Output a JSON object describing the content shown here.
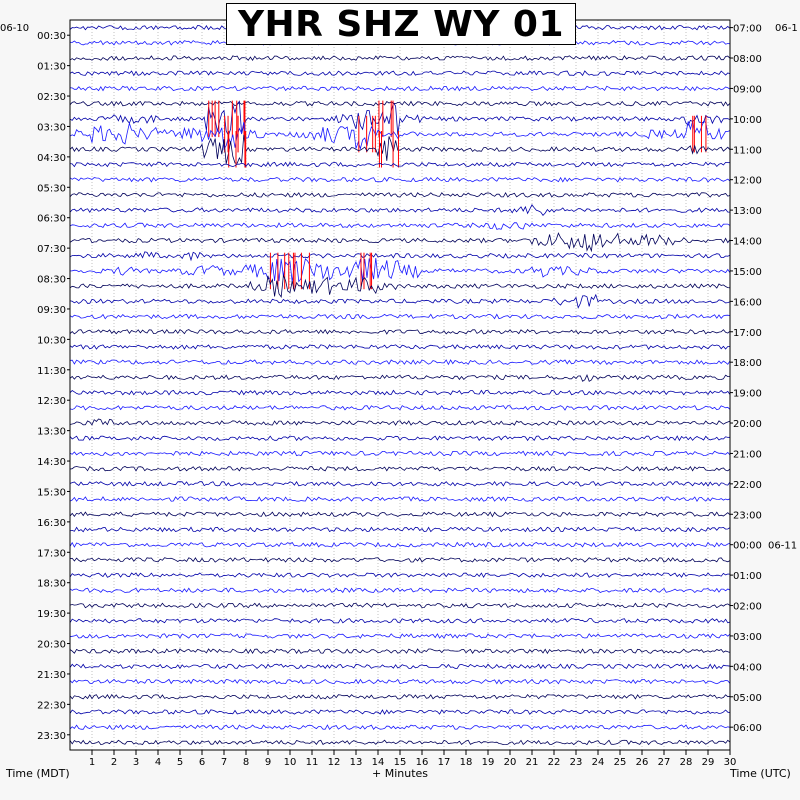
{
  "chart_data": {
    "type": "helicorder",
    "title": "YHR SHZ WY 01",
    "xlabel": "+ Minutes",
    "left_axis_label": "Time (MDT)",
    "right_axis_label": "Time (UTC)",
    "left_date_label": "06-10",
    "right_date_label": "06-1",
    "right_date_change_label": "06-11",
    "xlim": [
      0,
      30
    ],
    "x_ticks": [
      "1",
      "2",
      "3",
      "4",
      "5",
      "6",
      "7",
      "8",
      "9",
      "10",
      "11",
      "12",
      "13",
      "14",
      "15",
      "16",
      "17",
      "18",
      "19",
      "20",
      "21",
      "22",
      "23",
      "24",
      "25",
      "26",
      "27",
      "28",
      "29",
      "30"
    ],
    "left_time_labels": [
      "00:30",
      "01:30",
      "02:30",
      "03:30",
      "04:30",
      "05:30",
      "06:30",
      "07:30",
      "08:30",
      "09:30",
      "10:30",
      "11:30",
      "12:30",
      "13:30",
      "14:30",
      "15:30",
      "16:30",
      "17:30",
      "18:30",
      "19:30",
      "20:30",
      "21:30",
      "22:30",
      "23:30"
    ],
    "right_time_labels": [
      "07:00",
      "08:00",
      "09:00",
      "10:00",
      "11:00",
      "12:00",
      "13:00",
      "14:00",
      "15:00",
      "16:00",
      "17:00",
      "18:00",
      "19:00",
      "20:00",
      "21:00",
      "22:00",
      "23:00",
      "00:00",
      "01:00",
      "02:00",
      "03:00",
      "04:00",
      "05:00",
      "06:00"
    ],
    "date_change_row": 17,
    "traces_per_hour": 2,
    "trace_colors": [
      "#0000a8",
      "#1a1aff",
      "#00005a",
      "#ff0000"
    ],
    "row_activity": [
      [
        1,
        1,
        1,
        1,
        1,
        1,
        1,
        1,
        1,
        1,
        1,
        1,
        1,
        1,
        1,
        1,
        1,
        1,
        1,
        1,
        1,
        1,
        1,
        1,
        1,
        1,
        1,
        1,
        1,
        1
      ],
      [
        1,
        1,
        1,
        1,
        1,
        1,
        1,
        1,
        1,
        1,
        1,
        1,
        1,
        1,
        1,
        1,
        1,
        1,
        1,
        1,
        1,
        1,
        1,
        1,
        1,
        1,
        1,
        1,
        1,
        1
      ],
      [
        1,
        1,
        1,
        1,
        1,
        1,
        1,
        1,
        1,
        1,
        1,
        1,
        1,
        1,
        1,
        1,
        1,
        1,
        1,
        1,
        1,
        1,
        1,
        1,
        1,
        1,
        1,
        1,
        1,
        1
      ],
      [
        1,
        1,
        1,
        1,
        1,
        1,
        1,
        1,
        1,
        1,
        1,
        1,
        1,
        1,
        1,
        1,
        1,
        1,
        1,
        1,
        1,
        1,
        1,
        1,
        1,
        1,
        1,
        1,
        1,
        1
      ],
      [
        1,
        1,
        1,
        1,
        1,
        1,
        1,
        1,
        1,
        1,
        1,
        1,
        1,
        1,
        1,
        1,
        1,
        1,
        1,
        1,
        1,
        1,
        1,
        1,
        1,
        1,
        1,
        1,
        1,
        1
      ],
      [
        1,
        1,
        1,
        1,
        1,
        1,
        1,
        1,
        1,
        1,
        1,
        1,
        1,
        1,
        1,
        1,
        1,
        1,
        1,
        1,
        1,
        1,
        1,
        1,
        1,
        1,
        1,
        1,
        1,
        1
      ],
      [
        1,
        1,
        2,
        2,
        1,
        1,
        6,
        8,
        1,
        1,
        1,
        1,
        2,
        5,
        8,
        2,
        1,
        1,
        1,
        1,
        1,
        1,
        1,
        1,
        1,
        1,
        1,
        1,
        3,
        2
      ],
      [
        2,
        4,
        5,
        3,
        2,
        3,
        4,
        8,
        2,
        1,
        2,
        4,
        4,
        7,
        2,
        1,
        1,
        1,
        1,
        1,
        1,
        1,
        1,
        1,
        1,
        1,
        2,
        2,
        6,
        3
      ],
      [
        1,
        1,
        1,
        1,
        1,
        1,
        5,
        7,
        1,
        1,
        1,
        1,
        1,
        1,
        6,
        1,
        1,
        1,
        1,
        1,
        1,
        1,
        1,
        1,
        1,
        1,
        1,
        1,
        2,
        1
      ],
      [
        1,
        1,
        1,
        1,
        1,
        1,
        1,
        1,
        1,
        1,
        1,
        1,
        1,
        1,
        1,
        1,
        1,
        1,
        1,
        1,
        1,
        1,
        1,
        1,
        1,
        1,
        1,
        1,
        1,
        1
      ],
      [
        1,
        1,
        1,
        1,
        1,
        1,
        1,
        1,
        1,
        1,
        1,
        1,
        1,
        1,
        1,
        1,
        1,
        1,
        1,
        1,
        1,
        1,
        1,
        1,
        1,
        1,
        1,
        1,
        1,
        1
      ],
      [
        1,
        1,
        1,
        1,
        1,
        1,
        1,
        1,
        1,
        1,
        1,
        1,
        1,
        1,
        1,
        1,
        1,
        1,
        1,
        1,
        1,
        1,
        1,
        1,
        1,
        1,
        1,
        1,
        1,
        1
      ],
      [
        1,
        1,
        1,
        1,
        1,
        1,
        1,
        1,
        1,
        1,
        1,
        1,
        1,
        1,
        1,
        1,
        1,
        1,
        1,
        1,
        2,
        3,
        1,
        1,
        1,
        1,
        1,
        1,
        1,
        1
      ],
      [
        1,
        1,
        1,
        1,
        1,
        1,
        1,
        1,
        1,
        1,
        1,
        1,
        1,
        1,
        1,
        1,
        1,
        1,
        1,
        2,
        2,
        1,
        1,
        1,
        1,
        1,
        1,
        1,
        1,
        1
      ],
      [
        1,
        1,
        1,
        1,
        1,
        1,
        1,
        1,
        1,
        1,
        1,
        1,
        1,
        1,
        1,
        1,
        1,
        1,
        1,
        1,
        1,
        3,
        4,
        5,
        4,
        2,
        3,
        2,
        1,
        1
      ],
      [
        1,
        1,
        1,
        2,
        1,
        2,
        1,
        1,
        1,
        1,
        1,
        1,
        1,
        1,
        1,
        1,
        1,
        1,
        1,
        1,
        1,
        1,
        1,
        1,
        1,
        1,
        1,
        1,
        1,
        1
      ],
      [
        1,
        1,
        2,
        1,
        1,
        2,
        3,
        2,
        3,
        6,
        6,
        5,
        4,
        6,
        5,
        3,
        1,
        1,
        1,
        1,
        1,
        3,
        2,
        2,
        1,
        1,
        1,
        1,
        1,
        1
      ],
      [
        1,
        1,
        1,
        1,
        1,
        1,
        1,
        1,
        2,
        5,
        3,
        4,
        3,
        4,
        2,
        1,
        1,
        1,
        1,
        1,
        1,
        1,
        1,
        1,
        1,
        1,
        1,
        1,
        1,
        1
      ],
      [
        1,
        1,
        1,
        1,
        1,
        1,
        1,
        1,
        1,
        1,
        1,
        1,
        1,
        1,
        1,
        1,
        1,
        1,
        1,
        1,
        1,
        1,
        2,
        3,
        1,
        1,
        1,
        1,
        1,
        1
      ],
      [
        1,
        1,
        1,
        1,
        1,
        1,
        1,
        1,
        1,
        1,
        1,
        1,
        1,
        1,
        1,
        1,
        1,
        1,
        1,
        1,
        1,
        1,
        1,
        1,
        1,
        1,
        1,
        1,
        1,
        1
      ],
      [
        1,
        1,
        1,
        1,
        1,
        1,
        1,
        1,
        1,
        1,
        1,
        1,
        1,
        1,
        1,
        1,
        1,
        1,
        1,
        1,
        1,
        1,
        1,
        1,
        1,
        1,
        1,
        1,
        1,
        1
      ],
      [
        1,
        1,
        1,
        1,
        1,
        1,
        1,
        1,
        1,
        1,
        1,
        1,
        1,
        1,
        1,
        1,
        1,
        1,
        1,
        1,
        1,
        1,
        1,
        1,
        1,
        1,
        1,
        1,
        1,
        1
      ],
      [
        1,
        1,
        1,
        1,
        1,
        1,
        1,
        1,
        1,
        1,
        1,
        1,
        1,
        1,
        1,
        1,
        1,
        1,
        1,
        1,
        1,
        1,
        1,
        1,
        1,
        1,
        1,
        1,
        1,
        1
      ],
      [
        1,
        1,
        1,
        1,
        1,
        1,
        1,
        1,
        1,
        1,
        1,
        1,
        1,
        1,
        1,
        1,
        1,
        1,
        1,
        1,
        1,
        1,
        1,
        2,
        1,
        1,
        1,
        1,
        1,
        1
      ],
      [
        1,
        1,
        1,
        1,
        1,
        1,
        1,
        1,
        1,
        1,
        1,
        1,
        1,
        1,
        1,
        1,
        1,
        1,
        1,
        1,
        1,
        1,
        1,
        1,
        1,
        1,
        1,
        1,
        1,
        1
      ],
      [
        1,
        1,
        1,
        1,
        1,
        1,
        1,
        1,
        1,
        1,
        1,
        1,
        1,
        1,
        1,
        1,
        1,
        1,
        1,
        1,
        1,
        1,
        1,
        1,
        1,
        1,
        1,
        1,
        1,
        1
      ],
      [
        1,
        2,
        1,
        1,
        1,
        1,
        1,
        1,
        1,
        1,
        1,
        1,
        1,
        1,
        1,
        1,
        1,
        1,
        1,
        1,
        1,
        1,
        1,
        1,
        1,
        1,
        1,
        1,
        1,
        1
      ],
      [
        1,
        1,
        1,
        1,
        1,
        1,
        1,
        1,
        1,
        1,
        1,
        1,
        1,
        1,
        1,
        1,
        1,
        1,
        1,
        1,
        1,
        1,
        1,
        1,
        1,
        1,
        1,
        1,
        1,
        1
      ],
      [
        1,
        1,
        1,
        1,
        1,
        1,
        1,
        1,
        1,
        1,
        1,
        1,
        1,
        1,
        1,
        1,
        1,
        1,
        1,
        1,
        1,
        1,
        1,
        1,
        1,
        1,
        1,
        1,
        1,
        1
      ],
      [
        1,
        1,
        1,
        1,
        1,
        1,
        1,
        1,
        1,
        1,
        1,
        1,
        1,
        1,
        1,
        1,
        1,
        1,
        1,
        1,
        1,
        1,
        1,
        1,
        1,
        1,
        1,
        1,
        1,
        1
      ],
      [
        1,
        1,
        1,
        1,
        1,
        1,
        1,
        1,
        1,
        1,
        1,
        1,
        1,
        1,
        1,
        1,
        1,
        1,
        1,
        1,
        1,
        1,
        1,
        1,
        1,
        1,
        1,
        1,
        1,
        1
      ],
      [
        1,
        1,
        1,
        1,
        1,
        1,
        1,
        1,
        1,
        1,
        1,
        1,
        1,
        1,
        1,
        1,
        1,
        1,
        1,
        1,
        1,
        1,
        1,
        1,
        1,
        1,
        1,
        1,
        1,
        1
      ],
      [
        1,
        1,
        1,
        1,
        1,
        1,
        1,
        1,
        1,
        1,
        1,
        1,
        1,
        1,
        1,
        1,
        1,
        1,
        1,
        1,
        1,
        1,
        1,
        1,
        1,
        1,
        1,
        1,
        1,
        1
      ],
      [
        1,
        1,
        1,
        1,
        1,
        1,
        1,
        1,
        1,
        1,
        1,
        1,
        1,
        1,
        1,
        1,
        1,
        1,
        1,
        1,
        1,
        1,
        1,
        1,
        1,
        1,
        1,
        1,
        1,
        1
      ],
      [
        1,
        1,
        1,
        1,
        1,
        1,
        1,
        1,
        1,
        1,
        1,
        1,
        1,
        1,
        1,
        1,
        1,
        1,
        1,
        1,
        1,
        1,
        1,
        1,
        1,
        1,
        1,
        1,
        1,
        1
      ],
      [
        1,
        1,
        1,
        1,
        1,
        1,
        1,
        1,
        1,
        1,
        1,
        1,
        1,
        1,
        1,
        1,
        1,
        1,
        1,
        1,
        1,
        1,
        1,
        1,
        1,
        1,
        1,
        1,
        1,
        1
      ],
      [
        1,
        1,
        1,
        1,
        1,
        1,
        1,
        1,
        1,
        1,
        1,
        1,
        1,
        1,
        1,
        1,
        1,
        1,
        1,
        1,
        1,
        1,
        1,
        1,
        1,
        1,
        1,
        1,
        1,
        1
      ],
      [
        1,
        1,
        1,
        1,
        1,
        1,
        1,
        1,
        1,
        1,
        1,
        1,
        1,
        1,
        1,
        1,
        1,
        1,
        1,
        1,
        1,
        1,
        1,
        1,
        1,
        1,
        1,
        1,
        1,
        1
      ],
      [
        1,
        1,
        1,
        1,
        1,
        1,
        1,
        1,
        1,
        1,
        1,
        1,
        1,
        1,
        1,
        1,
        1,
        1,
        1,
        1,
        1,
        1,
        1,
        1,
        1,
        1,
        1,
        1,
        1,
        1
      ],
      [
        1,
        1,
        1,
        1,
        1,
        1,
        1,
        1,
        1,
        1,
        1,
        1,
        1,
        1,
        1,
        1,
        1,
        1,
        1,
        1,
        1,
        1,
        1,
        1,
        1,
        1,
        1,
        1,
        1,
        1
      ],
      [
        1,
        1,
        1,
        1,
        1,
        1,
        1,
        1,
        1,
        1,
        1,
        1,
        1,
        1,
        1,
        1,
        1,
        1,
        1,
        1,
        1,
        1,
        1,
        1,
        1,
        1,
        1,
        1,
        1,
        1
      ],
      [
        1,
        1,
        1,
        1,
        1,
        1,
        1,
        1,
        1,
        1,
        1,
        1,
        1,
        1,
        1,
        1,
        1,
        1,
        1,
        1,
        1,
        1,
        1,
        1,
        1,
        1,
        1,
        1,
        1,
        1
      ],
      [
        1,
        1,
        1,
        1,
        1,
        1,
        1,
        1,
        1,
        1,
        1,
        1,
        1,
        1,
        1,
        1,
        1,
        1,
        1,
        1,
        1,
        1,
        1,
        1,
        1,
        1,
        1,
        1,
        1,
        1
      ],
      [
        1,
        1,
        1,
        1,
        1,
        1,
        1,
        1,
        1,
        1,
        1,
        1,
        1,
        1,
        1,
        1,
        1,
        1,
        1,
        1,
        1,
        1,
        1,
        1,
        1,
        1,
        1,
        1,
        1,
        1
      ],
      [
        1,
        1,
        1,
        1,
        1,
        1,
        1,
        1,
        1,
        1,
        1,
        1,
        1,
        1,
        1,
        1,
        1,
        1,
        1,
        1,
        1,
        1,
        1,
        1,
        1,
        1,
        1,
        1,
        1,
        1
      ],
      [
        1,
        1,
        1,
        1,
        1,
        1,
        1,
        1,
        1,
        1,
        1,
        1,
        1,
        1,
        1,
        1,
        1,
        1,
        1,
        1,
        1,
        1,
        1,
        1,
        1,
        1,
        1,
        1,
        1,
        1
      ],
      [
        1,
        1,
        1,
        1,
        1,
        1,
        1,
        1,
        1,
        1,
        1,
        1,
        1,
        1,
        1,
        1,
        1,
        1,
        1,
        1,
        1,
        1,
        1,
        1,
        1,
        1,
        1,
        1,
        1,
        1
      ],
      [
        1,
        1,
        1,
        1,
        1,
        1,
        1,
        1,
        1,
        1,
        1,
        1,
        1,
        1,
        1,
        1,
        1,
        1,
        1,
        1,
        1,
        1,
        1,
        1,
        1,
        1,
        1,
        1,
        1,
        1
      ]
    ]
  }
}
